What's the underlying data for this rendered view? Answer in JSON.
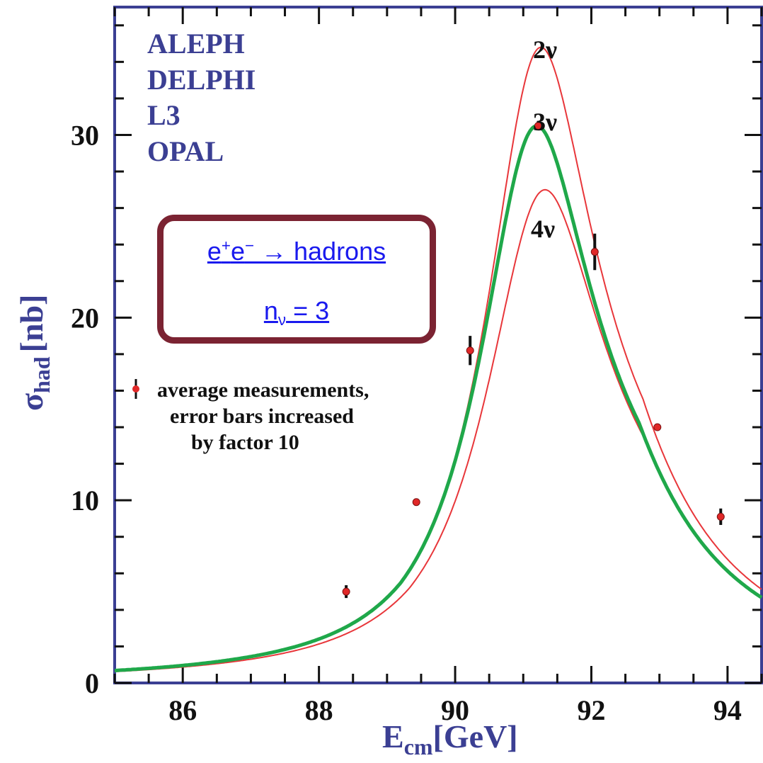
{
  "chart_data": {
    "type": "line",
    "xlabel_main": "E",
    "xlabel_sub": "cm",
    "xlabel_unit": "[GeV]",
    "ylabel_main": "σ",
    "ylabel_sub": "had",
    "ylabel_unit": "[nb]",
    "xlim": [
      85,
      94.5
    ],
    "ylim": [
      0,
      37
    ],
    "xticks": [
      86,
      88,
      90,
      92,
      94
    ],
    "yticks": [
      0,
      10,
      20,
      30
    ],
    "experiments": [
      "ALEPH",
      "DELPHI",
      "L3",
      "OPAL"
    ],
    "series": [
      {
        "name": "2ν",
        "color": "#e8363a",
        "peak": 34.8,
        "mz": 91.26,
        "width": 1.995
      },
      {
        "name": "3ν",
        "color": "#1fa84a",
        "peak": 30.5,
        "mz": 91.2,
        "width": 2.08
      },
      {
        "name": "4ν",
        "color": "#e8363a",
        "peak": 27.0,
        "mz": 91.32,
        "width": 2.16
      }
    ],
    "measurements": [
      {
        "x": 88.4,
        "y": 5.0,
        "err": 0.35
      },
      {
        "x": 89.43,
        "y": 9.9,
        "err": 0.2
      },
      {
        "x": 90.22,
        "y": 18.2,
        "err": 0.8
      },
      {
        "x": 91.22,
        "y": 30.5,
        "err": 0.15
      },
      {
        "x": 92.05,
        "y": 23.6,
        "err": 1.0
      },
      {
        "x": 92.97,
        "y": 14.0,
        "err": 0.15
      },
      {
        "x": 93.9,
        "y": 9.1,
        "err": 0.45
      }
    ],
    "legend": {
      "line1": "average measurements,",
      "line2": "error bars increased",
      "line3": "by factor 10"
    }
  },
  "annotation": {
    "process": {
      "e1": "e",
      "plus": "+",
      "e2": "e",
      "minus": "−",
      "arrow": " → hadrons"
    },
    "nnu": {
      "n": "n",
      "sub": "ν",
      "rest": " = 3"
    }
  }
}
